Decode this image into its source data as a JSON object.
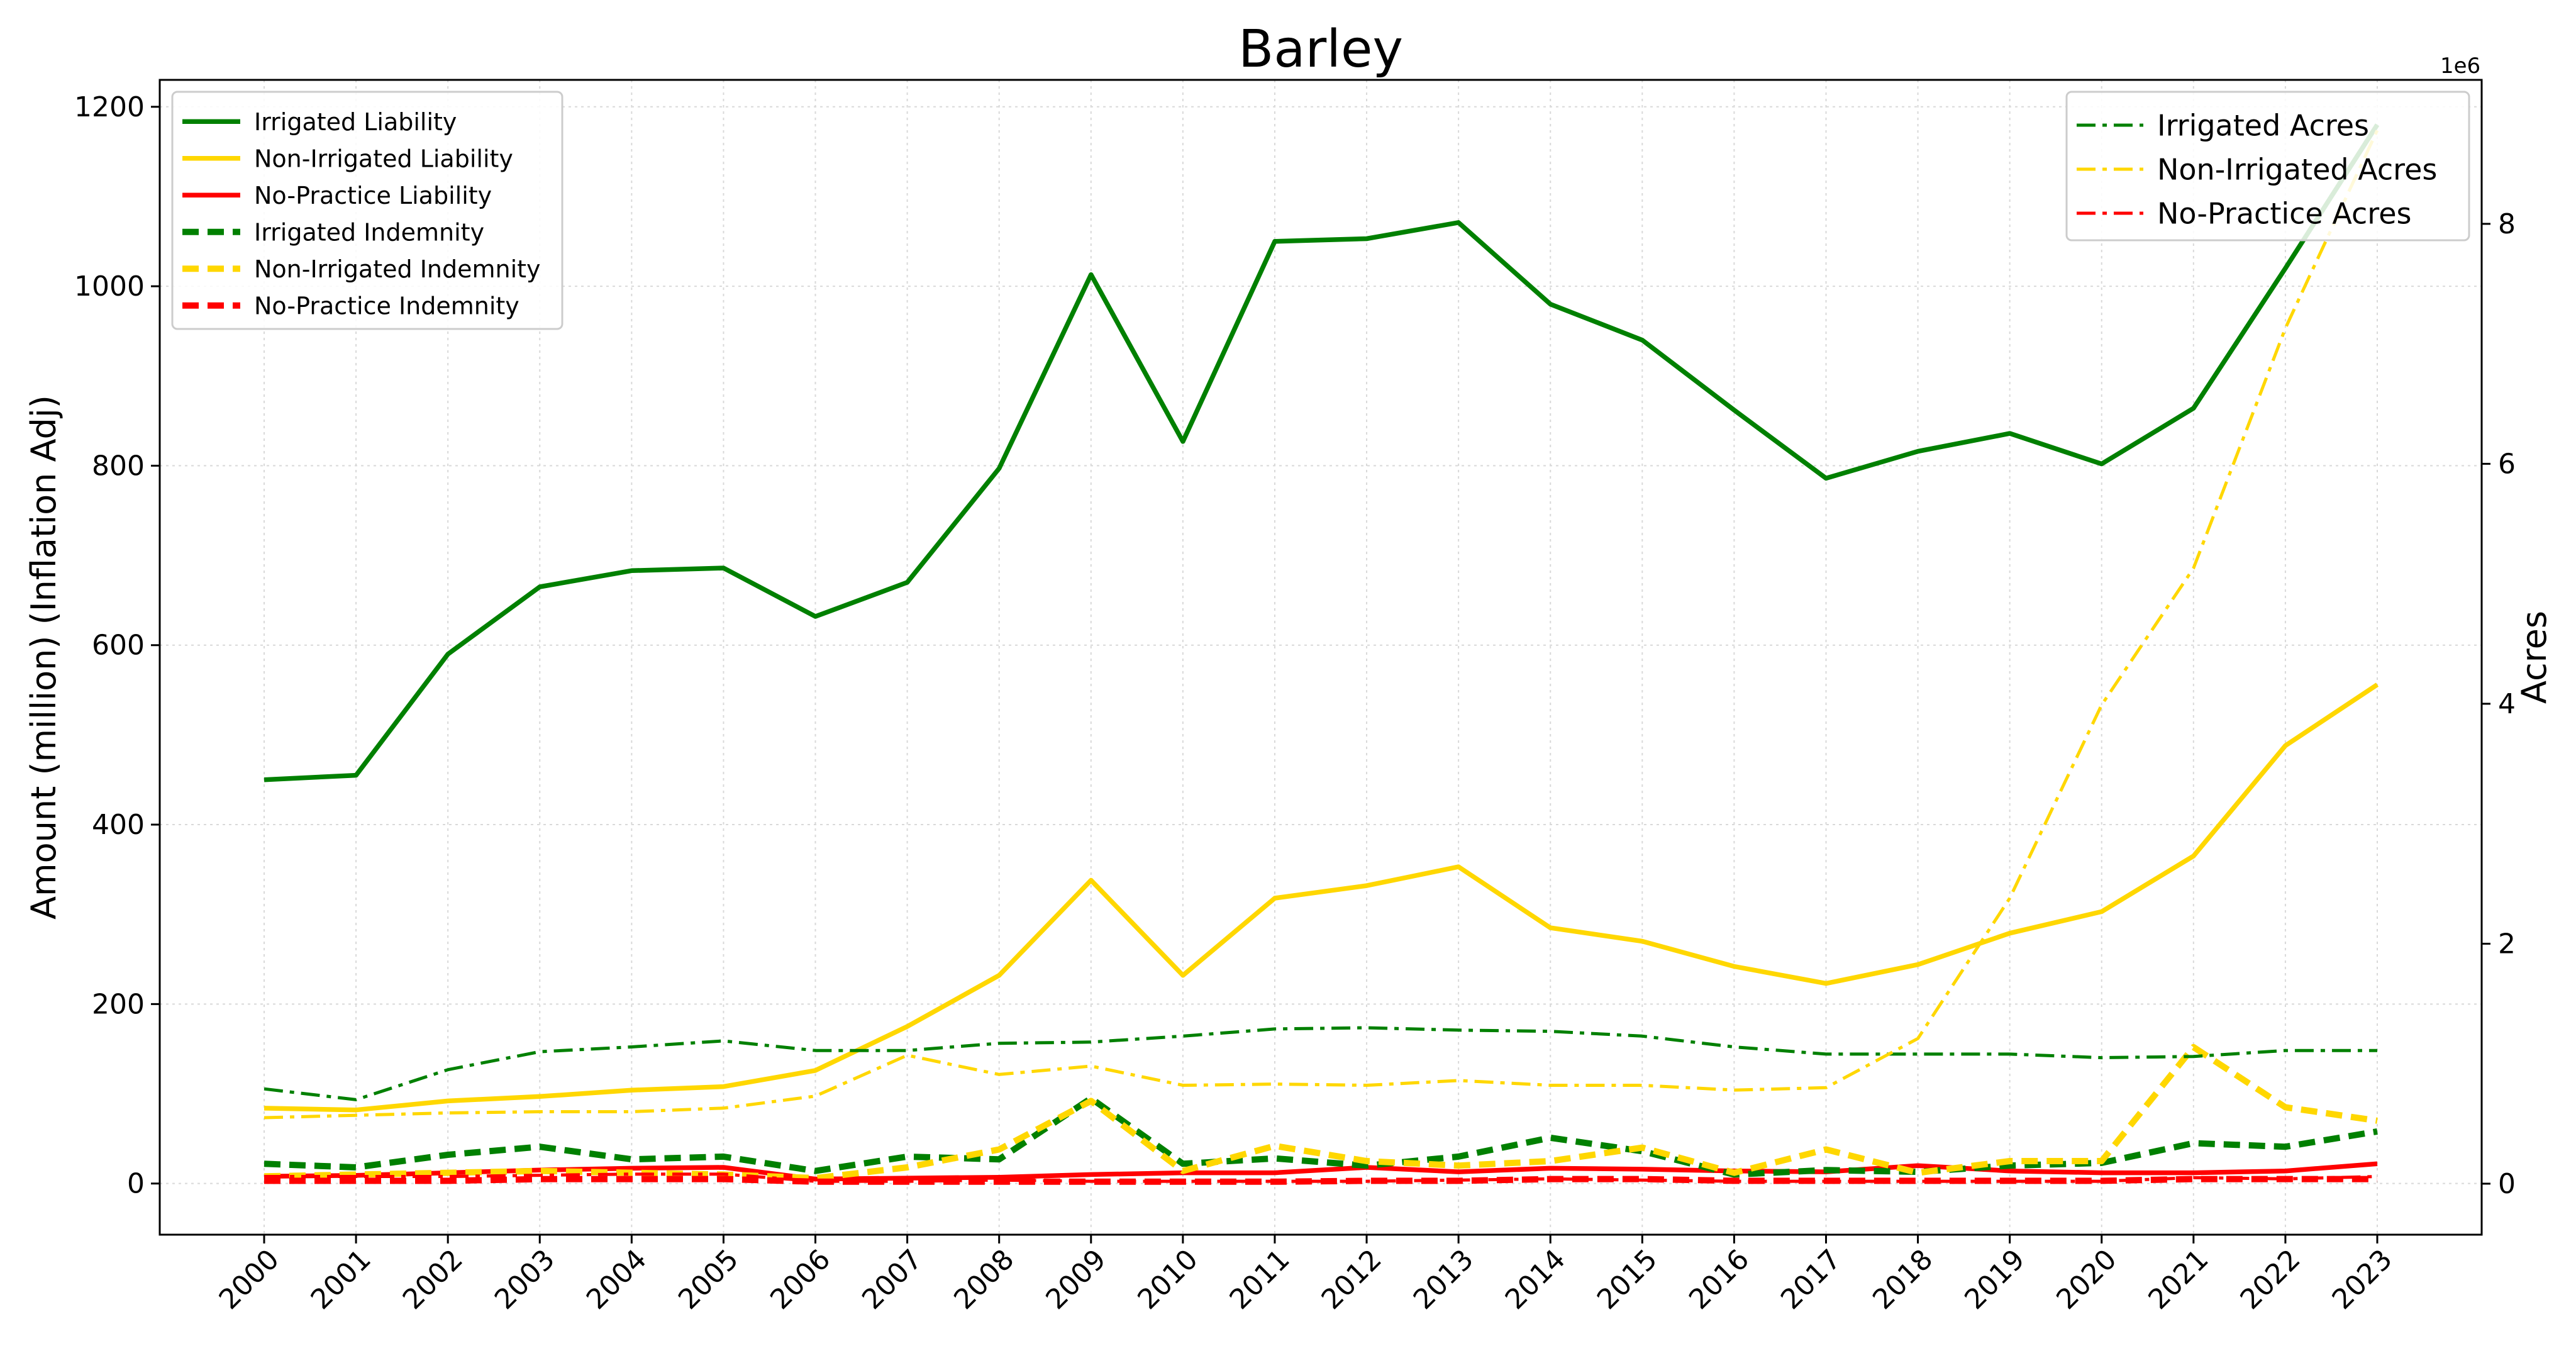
{
  "chart_data": {
    "type": "line",
    "title": "Barley",
    "x": [
      "2000",
      "2001",
      "2002",
      "2003",
      "2004",
      "2005",
      "2006",
      "2007",
      "2008",
      "2009",
      "2010",
      "2011",
      "2012",
      "2013",
      "2014",
      "2015",
      "2016",
      "2017",
      "2018",
      "2019",
      "2020",
      "2021",
      "2022",
      "2023"
    ],
    "ylabel": "Amount (million) (Inflation Adj)",
    "ylabel_right": "Acres",
    "right_axis_multiplier": "1e6",
    "ylim": [
      -57,
      1230
    ],
    "ylim_right": [
      -0.425,
      9.2
    ],
    "yticks": [
      0,
      200,
      400,
      600,
      800,
      1000,
      1200
    ],
    "yticks_right": [
      0,
      2,
      4,
      6,
      8
    ],
    "grid": true,
    "legend_left_position": "upper-left",
    "legend_right_position": "upper-right",
    "series": [
      {
        "name": "Irrigated Liability",
        "axis": "left",
        "style": "solid",
        "color": "#008000",
        "values": [
          450,
          455,
          590,
          665,
          683,
          686,
          632,
          670,
          797,
          1013,
          827,
          1050,
          1053,
          1071,
          980,
          940,
          862,
          786,
          816,
          836,
          802,
          864,
          1020,
          1180
        ]
      },
      {
        "name": "Non-Irrigated Liability",
        "axis": "left",
        "style": "solid",
        "color": "#FFD700",
        "values": [
          84,
          82,
          92,
          97,
          104,
          108,
          126,
          175,
          232,
          338,
          232,
          318,
          332,
          353,
          285,
          270,
          242,
          223,
          244,
          279,
          303,
          365,
          488,
          556
        ]
      },
      {
        "name": "No-Practice Liability",
        "axis": "left",
        "style": "solid",
        "color": "#FF0000",
        "values": [
          8,
          9,
          12,
          15,
          17,
          18,
          5,
          6,
          7,
          10,
          12,
          12,
          18,
          13,
          17,
          16,
          14,
          13,
          20,
          14,
          12,
          12,
          14,
          22
        ]
      },
      {
        "name": "Irrigated Indemnity",
        "axis": "left",
        "style": "dashed",
        "color": "#008000",
        "values": [
          22,
          18,
          32,
          41,
          27,
          30,
          14,
          30,
          27,
          95,
          22,
          28,
          20,
          30,
          51,
          36,
          10,
          15,
          13,
          20,
          23,
          45,
          41,
          58
        ]
      },
      {
        "name": "Non-Irrigated Indemnity",
        "axis": "left",
        "style": "dashed",
        "color": "#FFD700",
        "values": [
          8,
          10,
          12,
          14,
          12,
          10,
          6,
          18,
          38,
          92,
          14,
          42,
          25,
          20,
          25,
          40,
          12,
          38,
          12,
          25,
          25,
          152,
          85,
          70
        ]
      },
      {
        "name": "No-Practice Indemnity",
        "axis": "left",
        "style": "dashed",
        "color": "#FF0000",
        "values": [
          3,
          3,
          3,
          5,
          5,
          5,
          2,
          2,
          2,
          2,
          2,
          2,
          3,
          3,
          5,
          5,
          3,
          3,
          3,
          3,
          3,
          5,
          5,
          5
        ]
      },
      {
        "name": "Irrigated Acres",
        "axis": "right",
        "style": "dashdot",
        "color": "#008000",
        "values": [
          0.79,
          0.7,
          0.95,
          1.1,
          1.14,
          1.19,
          1.11,
          1.11,
          1.17,
          1.18,
          1.23,
          1.29,
          1.3,
          1.28,
          1.27,
          1.23,
          1.14,
          1.08,
          1.08,
          1.08,
          1.05,
          1.06,
          1.11,
          1.11
        ]
      },
      {
        "name": "Non-Irrigated Acres",
        "axis": "right",
        "style": "dashdot",
        "color": "#FFD700",
        "values": [
          0.55,
          0.57,
          0.59,
          0.6,
          0.6,
          0.63,
          0.73,
          1.07,
          0.91,
          0.98,
          0.82,
          0.83,
          0.82,
          0.86,
          0.82,
          0.82,
          0.78,
          0.8,
          1.21,
          2.38,
          3.99,
          5.13,
          7.13,
          8.78
        ]
      },
      {
        "name": "No-Practice Acres",
        "axis": "right",
        "style": "dashdot",
        "color": "#FF0000",
        "values": [
          0.06,
          0.06,
          0.06,
          0.07,
          0.08,
          0.08,
          0.02,
          0.02,
          0.03,
          0.02,
          0.02,
          0.02,
          0.02,
          0.03,
          0.04,
          0.03,
          0.02,
          0.02,
          0.02,
          0.02,
          0.02,
          0.05,
          0.04,
          0.06
        ]
      }
    ]
  }
}
